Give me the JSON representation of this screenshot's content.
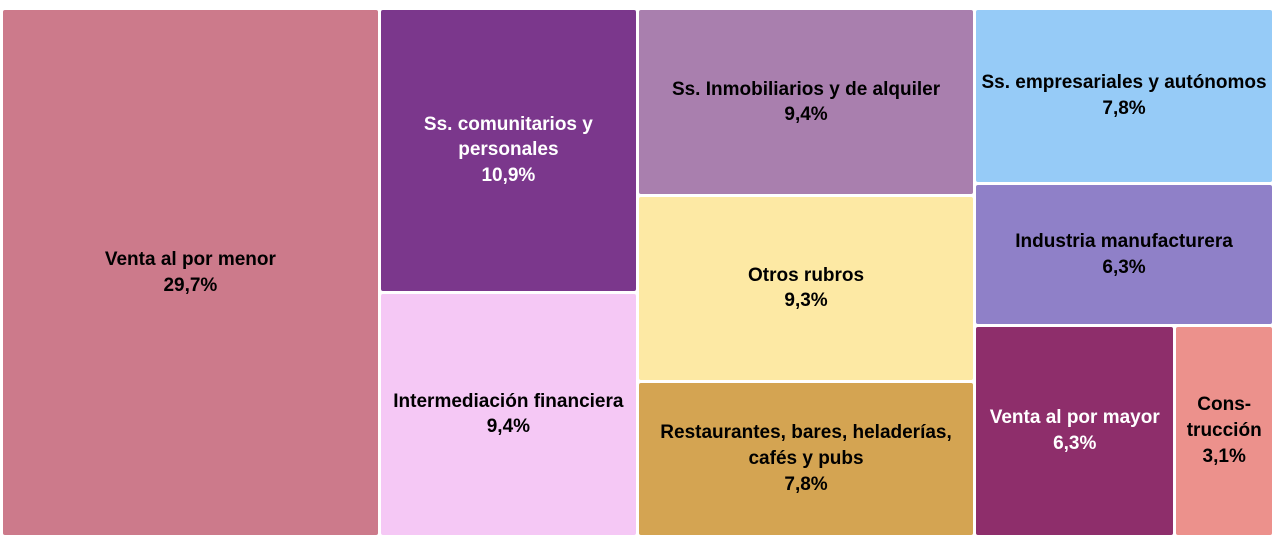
{
  "chart_data": {
    "type": "treemap",
    "categories": [
      "Venta al por menor",
      "Ss. comunitarios y personales",
      "Intermediación financiera",
      "Ss. Inmobiliarios y de alquiler",
      "Otros rubros",
      "Restaurantes, bares, heladerías, cafés y pubs",
      "Ss. empresariales y autónomos",
      "Industria manufacturera",
      "Venta al por mayor",
      "Cons­trucción"
    ],
    "values": [
      29.7,
      10.9,
      9.4,
      9.4,
      9.3,
      7.8,
      7.8,
      6.3,
      6.3,
      3.1
    ],
    "value_labels": [
      "29,7%",
      "10,9%",
      "9,4%",
      "9,4%",
      "9,3%",
      "7,8%",
      "7,8%",
      "6,3%",
      "6,3%",
      "3,1%"
    ],
    "colors": [
      "#cc7a8b",
      "#7b378c",
      "#f5c8f5",
      "#a97fae",
      "#fde9a4",
      "#d4a452",
      "#96cbf7",
      "#8f80c8",
      "#8e2e6b",
      "#ec918c"
    ]
  }
}
